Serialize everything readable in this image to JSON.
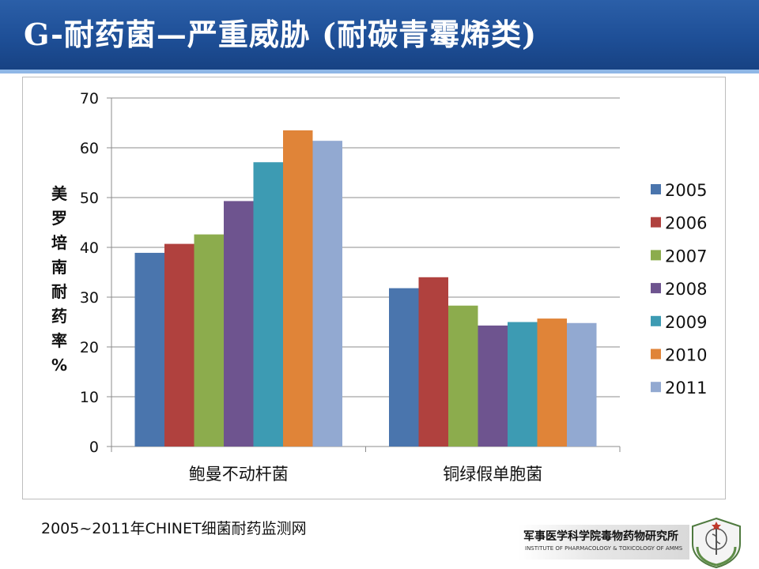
{
  "slide": {
    "title": "G-耐药菌—严重威胁 (耐碳青霉烯类)",
    "source": "2005~2011年CHINET细菌耐药监测网"
  },
  "logo": {
    "name_cn": "军事医学科学院毒物药物研究所",
    "name_en": "INSTITUTE OF PHARMACOLOGY & TOXICOLOGY OF AMMS"
  },
  "chart_data": {
    "type": "bar",
    "title": "",
    "xlabel": "",
    "ylabel": "美罗培南耐药率%",
    "ylim": [
      0,
      70
    ],
    "yticks": [
      0,
      10,
      20,
      30,
      40,
      50,
      60,
      70
    ],
    "grid": true,
    "legend_position": "right",
    "categories": [
      "鲍曼不动杆菌",
      "铜绿假单胞菌"
    ],
    "series": [
      {
        "name": "2005",
        "color": "#4a75ad",
        "values": [
          38.9,
          31.8
        ]
      },
      {
        "name": "2006",
        "color": "#b0413e",
        "values": [
          40.7,
          34.0
        ]
      },
      {
        "name": "2007",
        "color": "#8cac4d",
        "values": [
          42.6,
          28.3
        ]
      },
      {
        "name": "2008",
        "color": "#6e548f",
        "values": [
          49.3,
          24.3
        ]
      },
      {
        "name": "2009",
        "color": "#3d9bb3",
        "values": [
          57.1,
          25.0
        ]
      },
      {
        "name": "2010",
        "color": "#e08438",
        "values": [
          63.5,
          25.7
        ]
      },
      {
        "name": "2011",
        "color": "#92a9d1",
        "values": [
          61.4,
          24.8
        ]
      }
    ]
  }
}
